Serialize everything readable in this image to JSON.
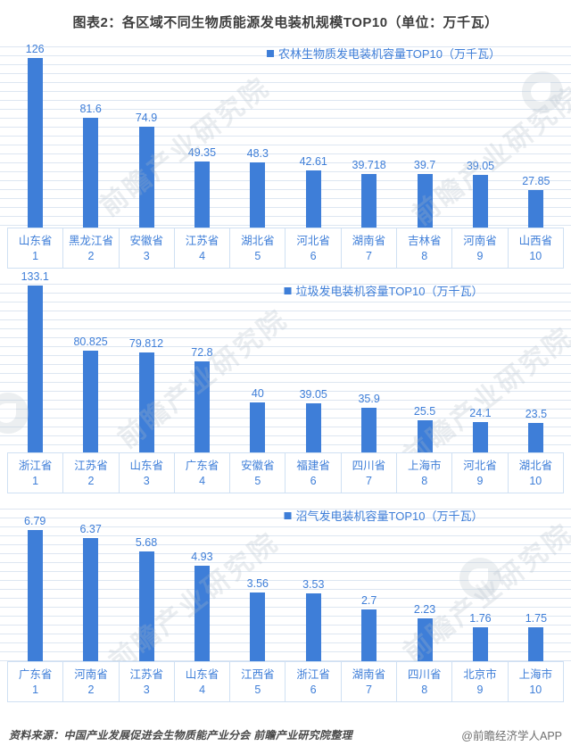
{
  "title": "图表2：各区域不同生物质能源发电装机规模TOP10（单位：万千瓦）",
  "footer": {
    "source": "资料来源：中国产业发展促进会生物质能产业分会 前瞻产业研究院整理",
    "brand": "@前瞻经济学人APP"
  },
  "watermark": {
    "text": "前瞻产业研究院"
  },
  "colors": {
    "bar": "#3e7ed8",
    "value_label": "#3e7ed8",
    "grid_line": "#dde6f1",
    "cell_border": "#cfe0f3",
    "title_text": "#3d3d3d"
  },
  "chart_data": [
    {
      "type": "bar",
      "legend": "农林生物质发电装机容量TOP10（万千瓦）",
      "categories": [
        "山东省",
        "黑龙江省",
        "安徽省",
        "江苏省",
        "湖北省",
        "河北省",
        "湖南省",
        "吉林省",
        "河南省",
        "山西省"
      ],
      "ranks": [
        1,
        2,
        3,
        4,
        5,
        6,
        7,
        8,
        9,
        10
      ],
      "values": [
        126,
        81.6,
        74.9,
        49.35,
        48.3,
        42.61,
        39.718,
        39.7,
        39.05,
        27.85
      ],
      "xlabel": "",
      "ylabel": "",
      "grid": true,
      "legend_position": "top-center"
    },
    {
      "type": "bar",
      "legend": "垃圾发电装机容量TOP10（万千瓦）",
      "categories": [
        "浙江省",
        "江苏省",
        "山东省",
        "广东省",
        "安徽省",
        "福建省",
        "四川省",
        "上海市",
        "河北省",
        "湖北省"
      ],
      "ranks": [
        1,
        2,
        3,
        4,
        5,
        6,
        7,
        8,
        9,
        10
      ],
      "values": [
        133.1,
        80.825,
        79.812,
        72.8,
        40,
        39.05,
        35.9,
        25.5,
        24.1,
        23.5
      ],
      "xlabel": "",
      "ylabel": "",
      "grid": true,
      "legend_position": "top-center"
    },
    {
      "type": "bar",
      "legend": "沼气发电装机容量TOP10（万千瓦）",
      "categories": [
        "广东省",
        "河南省",
        "江苏省",
        "山东省",
        "江西省",
        "浙江省",
        "湖南省",
        "四川省",
        "北京市",
        "上海市"
      ],
      "ranks": [
        1,
        2,
        3,
        4,
        5,
        6,
        7,
        8,
        9,
        10
      ],
      "values": [
        6.79,
        6.37,
        5.68,
        4.93,
        3.56,
        3.53,
        2.7,
        2.23,
        1.76,
        1.75
      ],
      "xlabel": "",
      "ylabel": "",
      "grid": true,
      "legend_position": "top-center"
    }
  ]
}
